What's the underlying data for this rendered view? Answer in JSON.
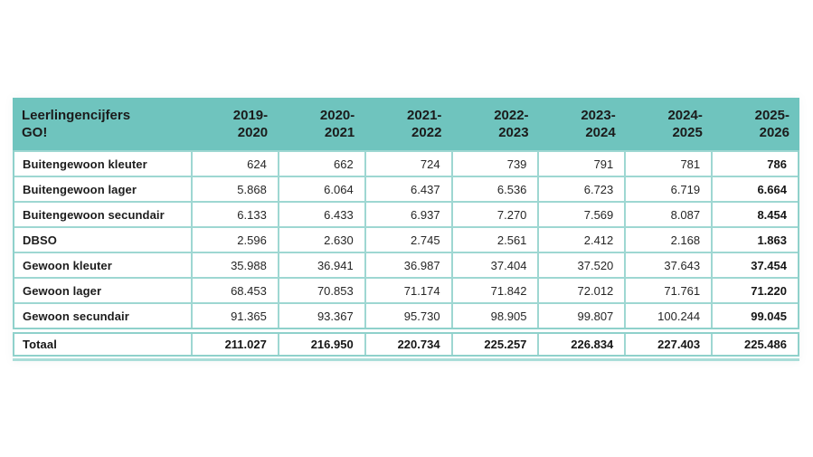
{
  "table": {
    "header": {
      "title": "Leerlingencijfers\nGO!",
      "columns": [
        "2019-\n2020",
        "2020-\n2021",
        "2021-\n2022",
        "2022-\n2023",
        "2023-\n2024",
        "2024-\n2025",
        "2025-\n2026"
      ]
    },
    "rows": [
      {
        "label": "Buitengewoon kleuter",
        "values": [
          "624",
          "662",
          "724",
          "739",
          "791",
          "781",
          "786"
        ]
      },
      {
        "label": "Buitengewoon lager",
        "values": [
          "5.868",
          "6.064",
          "6.437",
          "6.536",
          "6.723",
          "6.719",
          "6.664"
        ]
      },
      {
        "label": "Buitengewoon secundair",
        "values": [
          "6.133",
          "6.433",
          "6.937",
          "7.270",
          "7.569",
          "8.087",
          "8.454"
        ]
      },
      {
        "label": "DBSO",
        "values": [
          "2.596",
          "2.630",
          "2.745",
          "2.561",
          "2.412",
          "2.168",
          "1.863"
        ]
      },
      {
        "label": "Gewoon kleuter",
        "values": [
          "35.988",
          "36.941",
          "36.987",
          "37.404",
          "37.520",
          "37.643",
          "37.454"
        ]
      },
      {
        "label": "Gewoon lager",
        "values": [
          "68.453",
          "70.853",
          "71.174",
          "71.842",
          "72.012",
          "71.761",
          "71.220"
        ]
      },
      {
        "label": "Gewoon secundair",
        "values": [
          "91.365",
          "93.367",
          "95.730",
          "98.905",
          "99.807",
          "100.244",
          "99.045"
        ]
      }
    ],
    "total": {
      "label": "Totaal",
      "values": [
        "211.027",
        "216.950",
        "220.734",
        "225.257",
        "226.834",
        "227.403",
        "225.486"
      ]
    },
    "colors": {
      "header_bg": "#6FC4BE",
      "inner_border": "#9ED7D2",
      "outer_border": "#8FD1CB",
      "outer_bottom_band": "#AADDD8",
      "text": "#1c1c1c"
    }
  }
}
